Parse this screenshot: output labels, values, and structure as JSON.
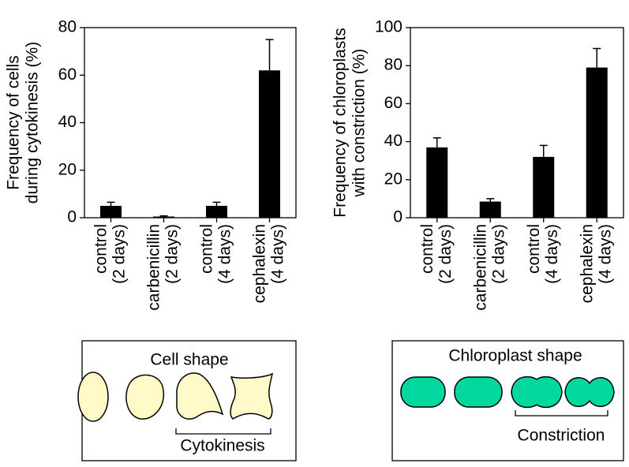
{
  "chart_data": [
    {
      "type": "bar",
      "ylabel": [
        "Frequency of cells",
        "during cytokinesis (%)"
      ],
      "categories": [
        [
          "control",
          "(2 days)"
        ],
        [
          "carbenicillin",
          "(2 days)"
        ],
        [
          "control",
          "(4 days)"
        ],
        [
          "cephalexin",
          "(4 days)"
        ]
      ],
      "values": [
        5,
        0.5,
        5,
        62
      ],
      "errors": [
        1.5,
        0.3,
        1.5,
        13
      ],
      "color": "#000000",
      "ylim": [
        0,
        80
      ],
      "yticks": [
        0,
        20,
        40,
        60,
        80
      ]
    },
    {
      "type": "bar",
      "ylabel": [
        "Frequency of chloroplasts",
        "with constriction (%)"
      ],
      "categories": [
        [
          "control",
          "(2 days)"
        ],
        [
          "carbenicillin",
          "(2 days)"
        ],
        [
          "control",
          "(4 days)"
        ],
        [
          "cephalexin",
          "(4 days)"
        ]
      ],
      "values": [
        37,
        8.5,
        32,
        79
      ],
      "errors": [
        5,
        1.5,
        6,
        10
      ],
      "color": "#000000",
      "ylim": [
        0,
        100
      ],
      "yticks": [
        0,
        20,
        40,
        60,
        80,
        100
      ]
    }
  ],
  "diagrams": [
    {
      "title": "Cell shape",
      "bracket": "Cytokinesis"
    },
    {
      "title": "Chloroplast shape",
      "bracket": "Constriction"
    }
  ]
}
